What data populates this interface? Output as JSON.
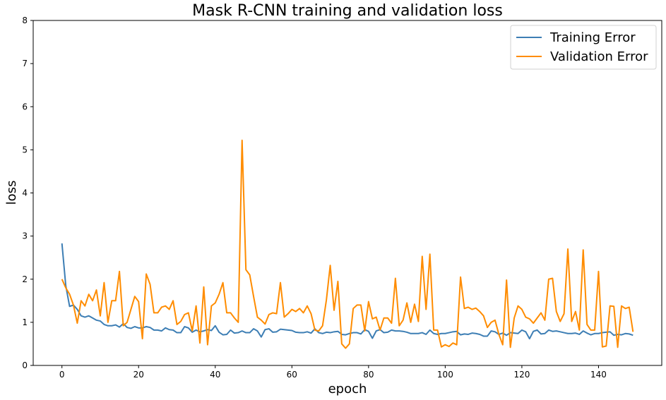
{
  "chart_data": {
    "type": "line",
    "title": "Mask R-CNN training and validation loss",
    "xlabel": "epoch",
    "ylabel": "loss",
    "xlim": [
      -7.5,
      156.5
    ],
    "ylim": [
      0,
      8
    ],
    "xticks": [
      0,
      20,
      40,
      60,
      80,
      100,
      120,
      140
    ],
    "yticks": [
      0,
      1,
      2,
      3,
      4,
      5,
      6,
      7,
      8
    ],
    "grid": false,
    "legend_position": "top-right",
    "series": [
      {
        "name": "Training Error",
        "color": "#3d7eb4",
        "x": [
          0,
          1,
          2,
          3,
          4,
          5,
          6,
          7,
          8,
          9,
          10,
          11,
          12,
          13,
          14,
          15,
          16,
          17,
          18,
          19,
          20,
          21,
          22,
          23,
          24,
          25,
          26,
          27,
          28,
          29,
          30,
          31,
          32,
          33,
          34,
          35,
          36,
          37,
          38,
          39,
          40,
          41,
          42,
          43,
          44,
          45,
          46,
          47,
          48,
          49,
          50,
          51,
          52,
          53,
          54,
          55,
          56,
          57,
          58,
          59,
          60,
          61,
          62,
          63,
          64,
          65,
          66,
          67,
          68,
          69,
          70,
          71,
          72,
          73,
          74,
          75,
          76,
          77,
          78,
          79,
          80,
          81,
          82,
          83,
          84,
          85,
          86,
          87,
          88,
          89,
          90,
          91,
          92,
          93,
          94,
          95,
          96,
          97,
          98,
          99,
          100,
          101,
          102,
          103,
          104,
          105,
          106,
          107,
          108,
          109,
          110,
          111,
          112,
          113,
          114,
          115,
          116,
          117,
          118,
          119,
          120,
          121,
          122,
          123,
          124,
          125,
          126,
          127,
          128,
          129,
          130,
          131,
          132,
          133,
          134,
          135,
          136,
          137,
          138,
          139,
          140,
          141,
          142,
          143,
          144,
          145,
          146,
          147,
          148,
          149
        ],
        "values": [
          2.83,
          1.85,
          1.37,
          1.4,
          1.3,
          1.15,
          1.12,
          1.15,
          1.1,
          1.05,
          1.03,
          0.95,
          0.92,
          0.92,
          0.94,
          0.89,
          0.97,
          0.88,
          0.86,
          0.9,
          0.87,
          0.87,
          0.9,
          0.88,
          0.82,
          0.82,
          0.8,
          0.87,
          0.83,
          0.82,
          0.76,
          0.76,
          0.9,
          0.87,
          0.77,
          0.82,
          0.78,
          0.8,
          0.83,
          0.81,
          0.92,
          0.77,
          0.71,
          0.72,
          0.82,
          0.75,
          0.76,
          0.8,
          0.76,
          0.76,
          0.85,
          0.8,
          0.66,
          0.83,
          0.85,
          0.77,
          0.78,
          0.84,
          0.83,
          0.82,
          0.81,
          0.77,
          0.76,
          0.76,
          0.78,
          0.75,
          0.85,
          0.76,
          0.74,
          0.77,
          0.76,
          0.78,
          0.79,
          0.72,
          0.71,
          0.74,
          0.76,
          0.76,
          0.73,
          0.83,
          0.79,
          0.63,
          0.8,
          0.83,
          0.76,
          0.77,
          0.82,
          0.8,
          0.8,
          0.79,
          0.77,
          0.74,
          0.74,
          0.74,
          0.76,
          0.72,
          0.82,
          0.74,
          0.72,
          0.74,
          0.74,
          0.76,
          0.78,
          0.79,
          0.71,
          0.73,
          0.72,
          0.75,
          0.74,
          0.72,
          0.68,
          0.68,
          0.8,
          0.78,
          0.72,
          0.75,
          0.7,
          0.76,
          0.75,
          0.74,
          0.82,
          0.78,
          0.62,
          0.79,
          0.82,
          0.73,
          0.74,
          0.82,
          0.79,
          0.8,
          0.78,
          0.76,
          0.74,
          0.74,
          0.75,
          0.72,
          0.8,
          0.75,
          0.71,
          0.74,
          0.74,
          0.76,
          0.77,
          0.78,
          0.7,
          0.72,
          0.71,
          0.74,
          0.73,
          0.7
        ]
      },
      {
        "name": "Validation Error",
        "color": "#ff8c00",
        "x": [
          0,
          1,
          2,
          3,
          4,
          5,
          6,
          7,
          8,
          9,
          10,
          11,
          12,
          13,
          14,
          15,
          16,
          17,
          18,
          19,
          20,
          21,
          22,
          23,
          24,
          25,
          26,
          27,
          28,
          29,
          30,
          31,
          32,
          33,
          34,
          35,
          36,
          37,
          38,
          39,
          40,
          41,
          42,
          43,
          44,
          45,
          46,
          47,
          48,
          49,
          50,
          51,
          52,
          53,
          54,
          55,
          56,
          57,
          58,
          59,
          60,
          61,
          62,
          63,
          64,
          65,
          66,
          67,
          68,
          69,
          70,
          71,
          72,
          73,
          74,
          75,
          76,
          77,
          78,
          79,
          80,
          81,
          82,
          83,
          84,
          85,
          86,
          87,
          88,
          89,
          90,
          91,
          92,
          93,
          94,
          95,
          96,
          97,
          98,
          99,
          100,
          101,
          102,
          103,
          104,
          105,
          106,
          107,
          108,
          109,
          110,
          111,
          112,
          113,
          114,
          115,
          116,
          117,
          118,
          119,
          120,
          121,
          122,
          123,
          124,
          125,
          126,
          127,
          128,
          129,
          130,
          131,
          132,
          133,
          134,
          135,
          136,
          137,
          138,
          139,
          140,
          141,
          142,
          143,
          144,
          145,
          146,
          147,
          148,
          149
        ],
        "values": [
          2.0,
          1.8,
          1.65,
          1.4,
          0.98,
          1.5,
          1.38,
          1.65,
          1.5,
          1.75,
          1.15,
          1.92,
          1.0,
          1.5,
          1.5,
          2.18,
          0.92,
          1.0,
          1.3,
          1.6,
          1.48,
          0.62,
          2.12,
          1.88,
          1.22,
          1.22,
          1.35,
          1.38,
          1.3,
          1.5,
          0.95,
          1.02,
          1.18,
          1.22,
          0.8,
          1.38,
          0.52,
          1.82,
          0.48,
          1.38,
          1.45,
          1.65,
          1.92,
          1.22,
          1.22,
          1.1,
          1.0,
          5.22,
          2.22,
          2.1,
          1.6,
          1.12,
          1.05,
          0.96,
          1.18,
          1.22,
          1.2,
          1.92,
          1.12,
          1.2,
          1.3,
          1.25,
          1.32,
          1.22,
          1.38,
          1.2,
          0.82,
          0.8,
          0.92,
          1.52,
          2.32,
          1.28,
          1.95,
          0.5,
          0.4,
          0.5,
          1.32,
          1.4,
          1.4,
          0.8,
          1.48,
          1.08,
          1.12,
          0.82,
          1.1,
          1.1,
          0.98,
          2.02,
          0.92,
          1.05,
          1.45,
          1.0,
          1.42,
          1.02,
          2.53,
          1.3,
          2.58,
          0.82,
          0.82,
          0.43,
          0.48,
          0.44,
          0.52,
          0.48,
          2.05,
          1.32,
          1.35,
          1.3,
          1.33,
          1.25,
          1.15,
          0.88,
          1.0,
          1.05,
          0.72,
          0.48,
          1.98,
          0.42,
          1.1,
          1.38,
          1.3,
          1.12,
          1.08,
          0.98,
          1.1,
          1.22,
          1.05,
          2.0,
          2.02,
          1.25,
          1.02,
          1.2,
          2.7,
          1.02,
          1.25,
          0.82,
          2.68,
          0.95,
          0.82,
          0.82,
          2.18,
          0.43,
          0.45,
          1.38,
          1.37,
          0.42,
          1.38,
          1.32,
          1.35,
          0.78
        ]
      }
    ]
  }
}
